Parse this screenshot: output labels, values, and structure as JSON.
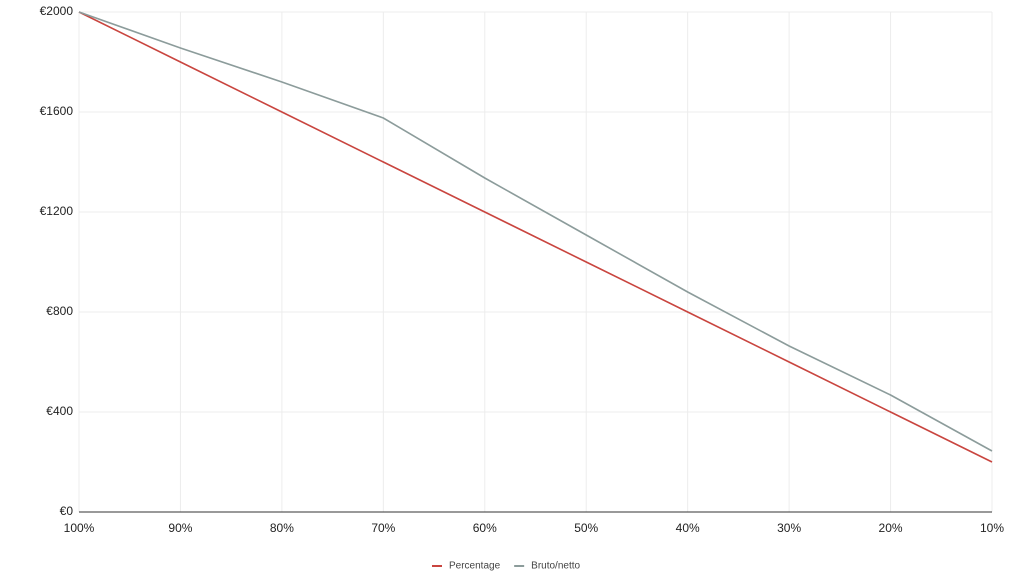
{
  "chart_data": {
    "type": "line",
    "categories": [
      "100%",
      "90%",
      "80%",
      "70%",
      "60%",
      "50%",
      "40%",
      "30%",
      "20%",
      "10%"
    ],
    "series": [
      {
        "name": "Percentage",
        "color": "#c9453f",
        "values": [
          2000,
          1800,
          1600,
          1400,
          1200,
          1000,
          800,
          600,
          400,
          200
        ]
      },
      {
        "name": "Bruto/netto",
        "color": "#8c9c9b",
        "values": [
          2000,
          1856,
          1720,
          1576,
          1336,
          1108,
          880,
          664,
          468,
          244
        ]
      }
    ],
    "ylim": [
      0,
      2000
    ],
    "yticks": [
      {
        "value": 0,
        "label": "€0"
      },
      {
        "value": 400,
        "label": "€400"
      },
      {
        "value": 800,
        "label": "€800"
      },
      {
        "value": 1200,
        "label": "€1200"
      },
      {
        "value": 1600,
        "label": "€1600"
      },
      {
        "value": 2000,
        "label": "€2000"
      }
    ],
    "grid": true,
    "legend": "bottom"
  }
}
